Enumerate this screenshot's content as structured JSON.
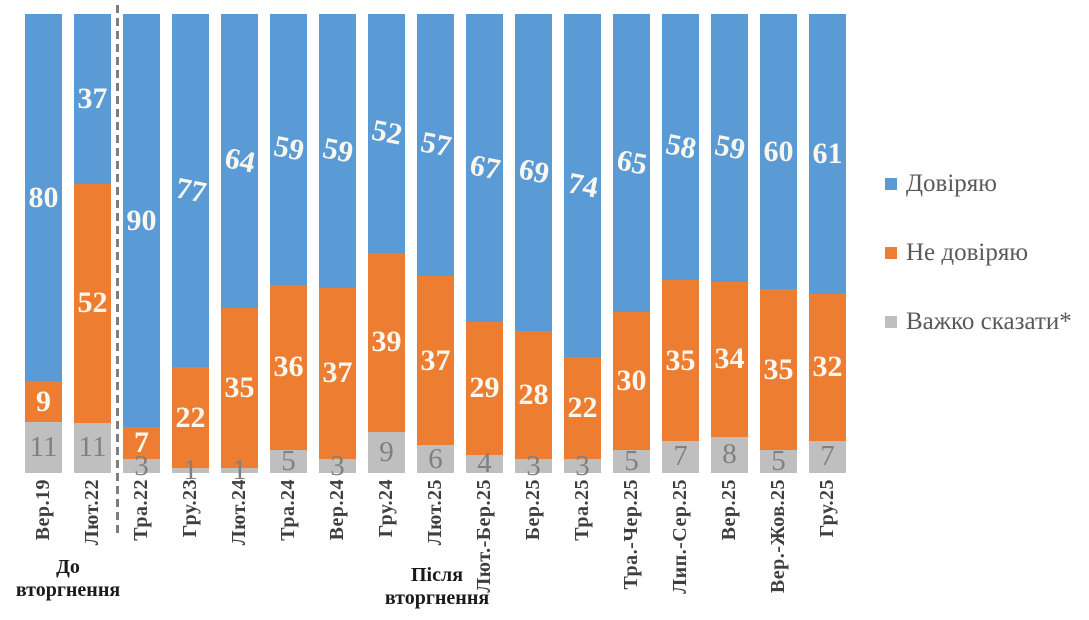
{
  "chart_data": {
    "type": "bar",
    "stacked": true,
    "percent_scale": true,
    "grid": false,
    "categories": [
      "Вер.19",
      "Лют.22",
      "Тра.22",
      "Гру.23",
      "Лют.24",
      "Тра.24",
      "Вер.24",
      "Гру.24",
      "Лют.25",
      "Лют.-Бер.25",
      "Бер.25",
      "Тра.25",
      "Тра.-Чер.25",
      "Лип.-Сер.25",
      "Вер.25",
      "Вер.-Жов.25",
      "Гру.25"
    ],
    "series": [
      {
        "name": "Довіряю",
        "color": "#5B9BD5",
        "label_color": "#FAF7EF",
        "values": [
          80,
          37,
          90,
          77,
          64,
          59,
          59,
          52,
          57,
          67,
          69,
          74,
          65,
          58,
          59,
          60,
          61
        ]
      },
      {
        "name": "Не довіряю",
        "color": "#ED7D31",
        "label_color": "#FAF7EF",
        "values": [
          9,
          52,
          7,
          22,
          35,
          36,
          37,
          39,
          37,
          29,
          28,
          22,
          30,
          35,
          34,
          35,
          32
        ]
      },
      {
        "name": "Важко сказати*",
        "color": "#BFBFBF",
        "label_color": "#808080",
        "values": [
          11,
          11,
          3,
          1,
          1,
          5,
          3,
          9,
          6,
          4,
          3,
          3,
          5,
          7,
          8,
          5,
          7
        ]
      }
    ],
    "legend": {
      "position": "right",
      "items": [
        "Довіряю",
        "Не довіряю",
        "Важко сказати*"
      ]
    },
    "annotations": [
      {
        "lines": [
          "До",
          "вторгнення"
        ]
      },
      {
        "lines": [
          "Після",
          "вторгнення"
        ]
      }
    ],
    "separator_after_category": "Лют.22"
  }
}
